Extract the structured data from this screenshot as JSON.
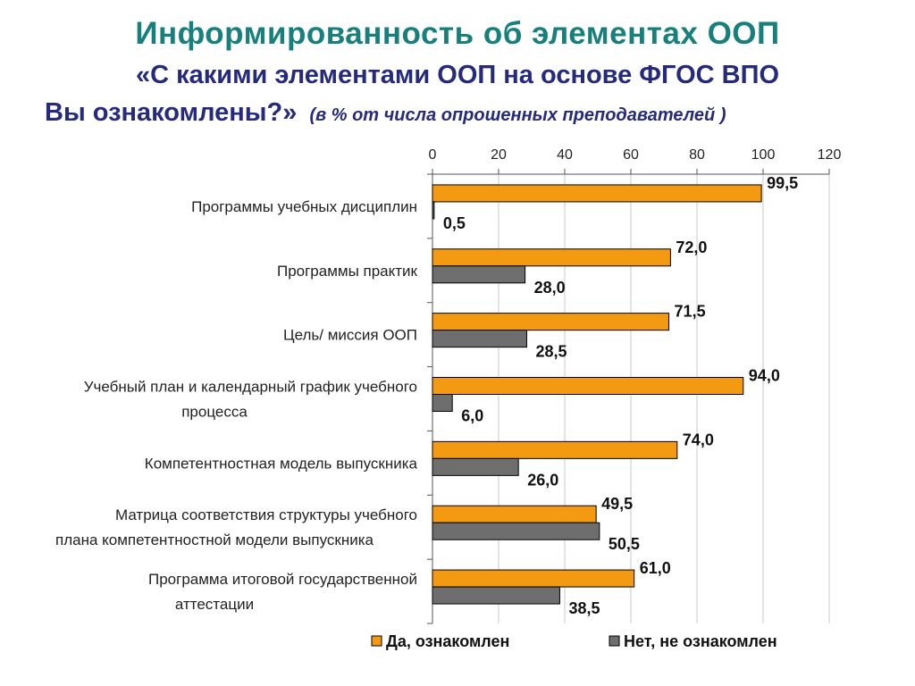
{
  "header": {
    "title": "Информированность об элементах ООП",
    "question_line1": "«С какими элементами ООП на основе ФГОС ВПО",
    "question_line2": "Вы ознакомлены?»",
    "note": "(в % от числа опрошенных преподавателей )"
  },
  "chart_data": {
    "type": "bar",
    "orientation": "horizontal",
    "categories": [
      [
        "Программы учебных дисциплин"
      ],
      [
        "Программы практик"
      ],
      [
        "Цель/ миссия ООП"
      ],
      [
        "Учебный план и календарный график учебного",
        "процесса"
      ],
      [
        "Компетентностная модель выпускника"
      ],
      [
        "Матрица соответствия структуры учебного",
        "плана компетентностной модели выпускника"
      ],
      [
        "Программа итоговой государственной",
        "аттестации"
      ]
    ],
    "series": [
      {
        "name": "Да, ознакомлен",
        "color": "#f39a12",
        "values": [
          99.5,
          72.0,
          71.5,
          94.0,
          74.0,
          49.5,
          61.0
        ],
        "labels": [
          "99,5",
          "72,0",
          "71,5",
          "94,0",
          "74,0",
          "49,5",
          "61,0"
        ]
      },
      {
        "name": "Нет, не ознакомлен",
        "color": "#6e6e6e",
        "values": [
          0.5,
          28.0,
          28.5,
          6.0,
          26.0,
          50.5,
          38.5
        ],
        "labels": [
          "0,5",
          "28,0",
          "28,5",
          "6,0",
          "26,0",
          "50,5",
          "38,5"
        ]
      }
    ],
    "xlim": [
      0,
      120
    ],
    "xticks": [
      "0",
      "20",
      "40",
      "60",
      "80",
      "100",
      "120"
    ],
    "xaxis_position": "top",
    "grid": "vertical",
    "legend": "bottom"
  }
}
